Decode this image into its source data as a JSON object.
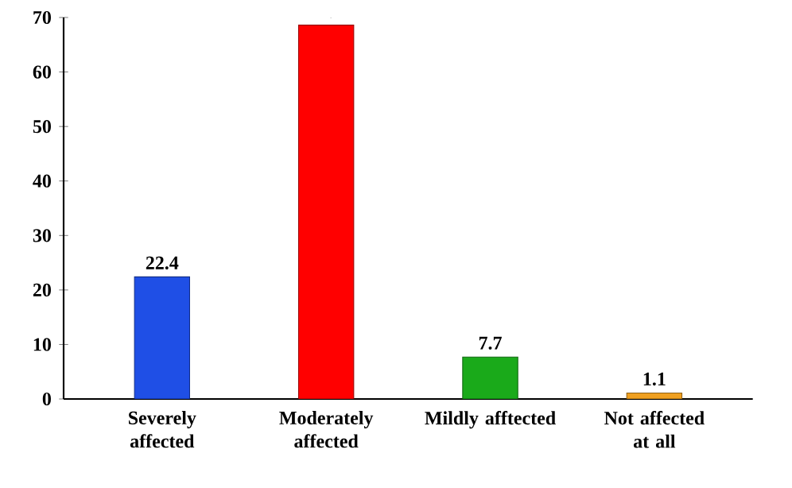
{
  "chart_data": {
    "type": "bar",
    "categories": [
      "Severely affected",
      "Moderately affected",
      "Mildly afftected",
      "Not affected at all"
    ],
    "values": [
      22.4,
      68.6,
      7.7,
      1.1
    ],
    "colors": [
      "#1f4fe6",
      "#ff0000",
      "#1aaa1a",
      "#f0a020"
    ],
    "ylim": [
      0,
      70
    ],
    "yticks": [
      0,
      10,
      20,
      30,
      40,
      50,
      60,
      70
    ],
    "data_labels": true,
    "grid": false
  }
}
